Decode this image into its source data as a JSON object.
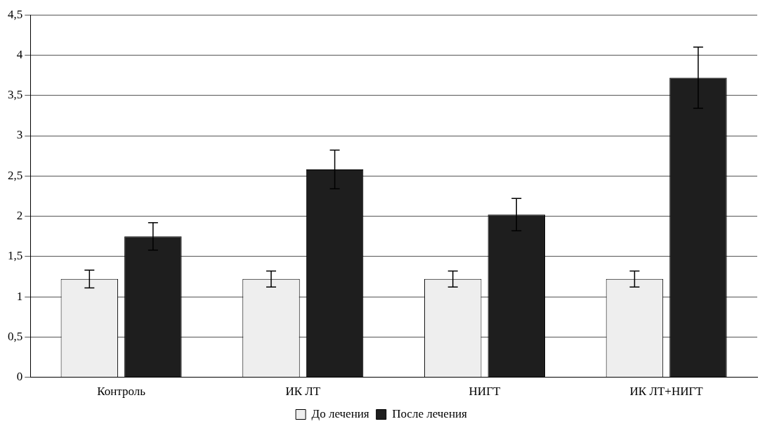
{
  "chart_data": {
    "type": "bar",
    "categories": [
      "Контроль",
      "ИК ЛТ",
      "НИГТ",
      "ИК ЛТ+НИГТ"
    ],
    "series": [
      {
        "name": "До лечения",
        "color": "#eeeeee",
        "values": [
          1.22,
          1.22,
          1.22,
          1.22
        ],
        "errors": [
          0.11,
          0.1,
          0.1,
          0.1
        ]
      },
      {
        "name": "После лечения",
        "color": "#1e1e1e",
        "values": [
          1.75,
          2.58,
          2.02,
          3.72
        ],
        "errors": [
          0.17,
          0.24,
          0.2,
          0.38
        ]
      }
    ],
    "ylim": [
      0,
      4.5
    ],
    "yticks": [
      {
        "value": 0,
        "label": "0"
      },
      {
        "value": 0.5,
        "label": "0,5"
      },
      {
        "value": 1,
        "label": "1"
      },
      {
        "value": 1.5,
        "label": "1,5"
      },
      {
        "value": 2,
        "label": "2"
      },
      {
        "value": 2.5,
        "label": "2,5"
      },
      {
        "value": 3,
        "label": "3"
      },
      {
        "value": 3.5,
        "label": "3,5"
      },
      {
        "value": 4,
        "label": "4"
      },
      {
        "value": 4.5,
        "label": "4,5"
      }
    ],
    "grid": "y",
    "legend": "bottom"
  }
}
